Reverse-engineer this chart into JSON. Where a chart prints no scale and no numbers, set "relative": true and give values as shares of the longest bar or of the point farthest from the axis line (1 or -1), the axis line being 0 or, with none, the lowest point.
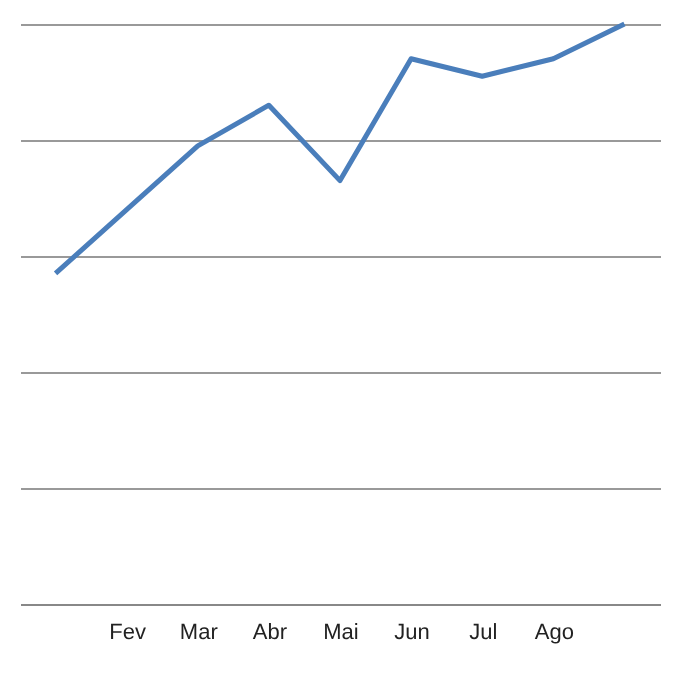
{
  "chart_data": {
    "type": "line",
    "relative": true,
    "grid": "y",
    "categories": [
      null,
      "Fev",
      "Mar",
      "Abr",
      "Mai",
      "Jun",
      "Jul",
      "Ago",
      null
    ],
    "series": [
      {
        "color": "#4a7ebb",
        "values": [
          0.57,
          0.68,
          0.79,
          0.86,
          0.73,
          0.94,
          0.91,
          0.94,
          1
        ]
      }
    ]
  }
}
